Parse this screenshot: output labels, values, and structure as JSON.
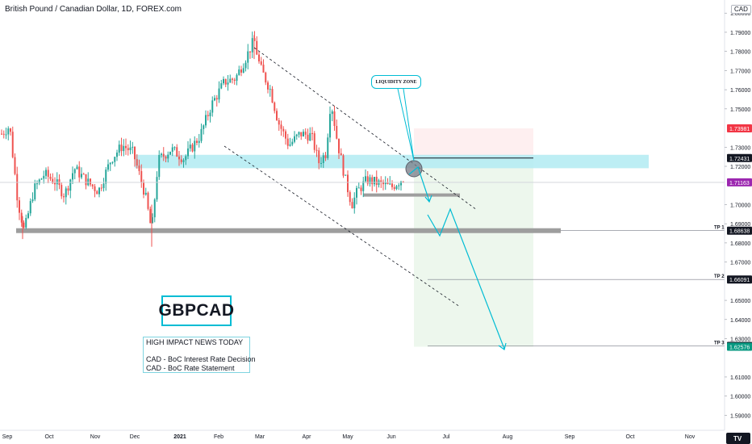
{
  "header": {
    "title": "British Pound / Canadian Dollar, 1D, FOREX.com",
    "currency": "CAD"
  },
  "chart_data": {
    "type": "candlestick",
    "ylim": [
      1.583,
      1.806
    ],
    "y_ticks": [
      "1.80000",
      "1.79000",
      "1.78000",
      "1.77000",
      "1.76000",
      "1.75000",
      "1.73000",
      "1.72000",
      "1.70000",
      "1.69000",
      "1.68000",
      "1.67000",
      "1.65000",
      "1.64000",
      "1.63000",
      "1.61000",
      "1.60000",
      "1.59000"
    ],
    "x_ticks": [
      "Sep",
      "Oct",
      "Nov",
      "Dec",
      "2021",
      "Feb",
      "Mar",
      "Apr",
      "May",
      "Jun",
      "Jul",
      "Aug",
      "Sep",
      "Oct",
      "Nov"
    ],
    "price_labels": [
      {
        "value": "1.73981",
        "color": "#f23645",
        "y": 1.7398
      },
      {
        "value": "1.72431",
        "color": "#131722",
        "y": 1.7243
      },
      {
        "value": "1.71163",
        "color": "#9c27b0",
        "y": 1.7116
      },
      {
        "value": "1.68638",
        "color": "#131722",
        "y": 1.6864
      },
      {
        "value": "1.66091",
        "color": "#131722",
        "y": 1.6609
      },
      {
        "value": "1.62621",
        "color": "#131722",
        "y": 1.6262
      },
      {
        "value": "1.62576",
        "color": "#089981",
        "y": 1.6258
      }
    ],
    "targets": [
      {
        "label": "TP 1",
        "y": 1.6864
      },
      {
        "label": "TP 2",
        "y": 1.6609
      },
      {
        "label": "TP 3",
        "y": 1.6262
      }
    ],
    "zones": {
      "liquidity_zone": [
        1.719,
        1.726
      ],
      "support": 1.6864,
      "stop": 1.7398,
      "entry": 1.7243,
      "target": 1.6258
    },
    "colors": {
      "up": "#26a69a",
      "down": "#ef5350",
      "zone": "#b2ebf2",
      "arrow": "#00bcd4"
    }
  },
  "annotations": {
    "symbol": "GBPCAD",
    "liquidity_label": "LIQUIDITY ZONE",
    "news": [
      "HIGH IMPACT NEWS TODAY",
      "",
      "CAD - BoC Interest Rate Decision",
      "CAD - BoC Rate Statement"
    ]
  },
  "footer": {
    "logo": "TV"
  }
}
